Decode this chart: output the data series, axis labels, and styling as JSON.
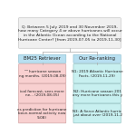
{
  "query_text": "Q: Between 5 July 2019 and 30 November 2019,\nhow many Category 4 or above hurricanes will occur\nin the Atlantic Ocean according to the National\nHurricane Center? [from 2019-07-05 to 2019-11-30]",
  "left_header": "BM25 Retriever",
  "right_header": "Our Re-ranking",
  "left_items": [
    "\"\" hurricane season\nng months. (2019-08-09)",
    "ical forecast, sees more\nne... (2019-08-05)",
    "es prediction for hurricane\nbove-normal activity now\n9-08)"
  ],
  "right_items": [
    "N1: 2019 Atlantic Hurricane\nFacts. (2019-11-29)",
    "N2: Hurricane season 201\nany more hurricanes this y",
    "N3: A fierce Atlantic hurric\njust about over (2019-11-2"
  ],
  "query_bg": "#f0f0f0",
  "query_border": "#bbbbbb",
  "left_header_bg": "#b8dff0",
  "right_header_bg": "#b8dff0",
  "left_item_bg": "#f8d0d0",
  "right_item_bg": "#c8f0f0",
  "line_color": "#aaaaaa",
  "text_color": "#222222",
  "query_fontsize": 3.2,
  "header_fontsize": 3.8,
  "item_fontsize": 3.0,
  "fig_w": 1.5,
  "fig_h": 1.5,
  "dpi": 100
}
